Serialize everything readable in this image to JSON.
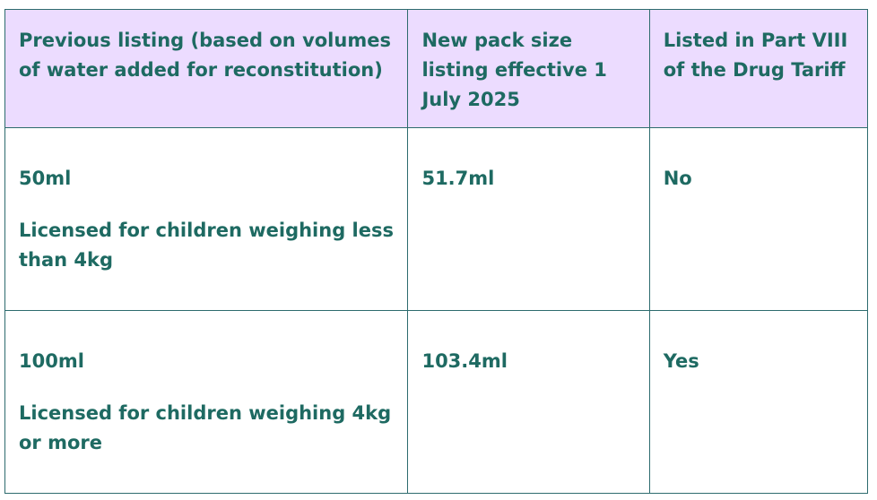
{
  "table": {
    "headers": [
      "Previous listing (based on volumes of water added for reconstitution)",
      "New pack size listing effective 1 July 2025",
      "Listed in Part VIII of the Drug Tariff"
    ],
    "rows": [
      {
        "previous": "50ml",
        "previous_note": "Licensed for children weighing less than 4kg",
        "new_size": "51.7ml",
        "part_viii": "No"
      },
      {
        "previous": "100ml",
        "previous_note": "Licensed for children weighing 4kg or more",
        "new_size": "103.4ml",
        "part_viii": "Yes"
      }
    ]
  },
  "colors": {
    "header_background": "#ecdcff",
    "text": "#1e6a62",
    "border": "#2d6b6e"
  }
}
